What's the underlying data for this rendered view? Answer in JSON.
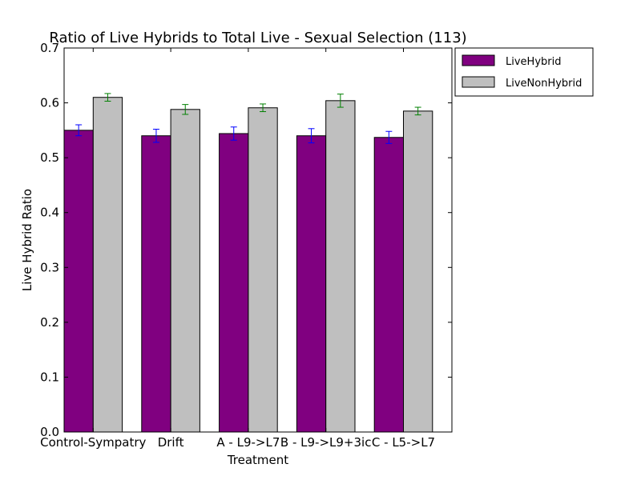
{
  "chart_data": {
    "type": "bar",
    "title": "Ratio of Live Hybrids to Total Live - Sexual Selection (113)",
    "xlabel": "Treatment",
    "ylabel": "Live Hybrid Ratio",
    "ylim": [
      0,
      0.7
    ],
    "yticks": [
      0.0,
      0.1,
      0.2,
      0.3,
      0.4,
      0.5,
      0.6,
      0.7
    ],
    "ytick_labels": [
      "0.0",
      "0.1",
      "0.2",
      "0.3",
      "0.4",
      "0.5",
      "0.6",
      "0.7"
    ],
    "categories": [
      "Control-Sympatry",
      "Drift",
      "A - L9->L7",
      "B - L9->L9+3ic",
      "C - L5->L7"
    ],
    "legend_position": "outside-top-right",
    "grid": false,
    "series": [
      {
        "name": "LiveHybrid",
        "color": "#800080",
        "error_color": "#0000ff",
        "values": [
          0.55,
          0.54,
          0.544,
          0.54,
          0.537
        ],
        "errors": [
          0.01,
          0.012,
          0.012,
          0.013,
          0.011
        ]
      },
      {
        "name": "LiveNonHybrid",
        "color": "#bfbfbf",
        "error_color": "#008000",
        "values": [
          0.61,
          0.588,
          0.591,
          0.604,
          0.585
        ],
        "errors": [
          0.007,
          0.009,
          0.007,
          0.012,
          0.007
        ]
      }
    ]
  }
}
